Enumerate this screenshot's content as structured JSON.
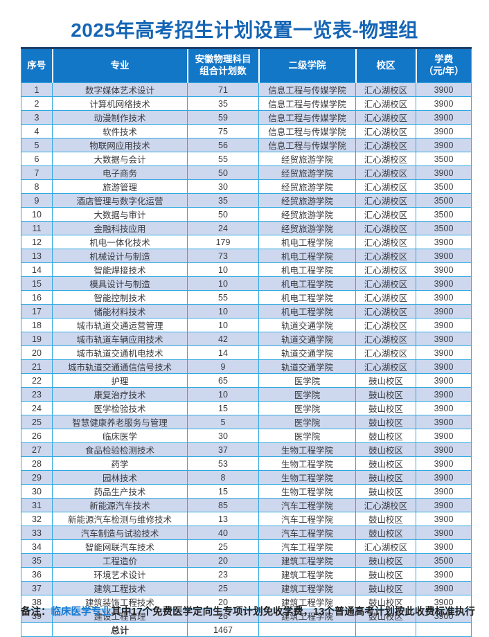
{
  "title": "2025年高考招生计划设置一览表-物理组",
  "colors": {
    "title_blue": "#1565b5",
    "header_bg": "#1377c8",
    "header_top_border": "#1b3e6a",
    "grid_border": "#2ea9e0",
    "odd_row_bg": "#cdd7ee",
    "body_text": "#3a3a3e",
    "note_highlight": "#1779d0"
  },
  "table": {
    "columns": [
      {
        "lines": [
          "序号"
        ]
      },
      {
        "lines": [
          "专业"
        ]
      },
      {
        "lines": [
          "安徽物理科目",
          "组合计划数"
        ]
      },
      {
        "lines": [
          "二级学院"
        ]
      },
      {
        "lines": [
          "校区"
        ]
      },
      {
        "lines": [
          "学费",
          "（元/年）"
        ]
      }
    ],
    "rows": [
      [
        "1",
        "数字媒体艺术设计",
        "71",
        "信息工程与传媒学院",
        "汇心湖校区",
        "3900"
      ],
      [
        "2",
        "计算机网络技术",
        "35",
        "信息工程与传媒学院",
        "汇心湖校区",
        "3900"
      ],
      [
        "3",
        "动漫制作技术",
        "59",
        "信息工程与传媒学院",
        "汇心湖校区",
        "3900"
      ],
      [
        "4",
        "软件技术",
        "75",
        "信息工程与传媒学院",
        "汇心湖校区",
        "3900"
      ],
      [
        "5",
        "物联网应用技术",
        "56",
        "信息工程与传媒学院",
        "汇心湖校区",
        "3900"
      ],
      [
        "6",
        "大数据与会计",
        "55",
        "经贸旅游学院",
        "汇心湖校区",
        "3500"
      ],
      [
        "7",
        "电子商务",
        "50",
        "经贸旅游学院",
        "汇心湖校区",
        "3900"
      ],
      [
        "8",
        "旅游管理",
        "30",
        "经贸旅游学院",
        "汇心湖校区",
        "3500"
      ],
      [
        "9",
        "酒店管理与数字化运营",
        "35",
        "经贸旅游学院",
        "汇心湖校区",
        "3500"
      ],
      [
        "10",
        "大数据与审计",
        "50",
        "经贸旅游学院",
        "汇心湖校区",
        "3500"
      ],
      [
        "11",
        "金融科技应用",
        "24",
        "经贸旅游学院",
        "汇心湖校区",
        "3500"
      ],
      [
        "12",
        "机电一体化技术",
        "179",
        "机电工程学院",
        "汇心湖校区",
        "3900"
      ],
      [
        "13",
        "机械设计与制造",
        "73",
        "机电工程学院",
        "汇心湖校区",
        "3900"
      ],
      [
        "14",
        "智能焊接技术",
        "10",
        "机电工程学院",
        "汇心湖校区",
        "3900"
      ],
      [
        "15",
        "模具设计与制造",
        "10",
        "机电工程学院",
        "汇心湖校区",
        "3900"
      ],
      [
        "16",
        "智能控制技术",
        "55",
        "机电工程学院",
        "汇心湖校区",
        "3900"
      ],
      [
        "17",
        "储能材料技术",
        "10",
        "机电工程学院",
        "汇心湖校区",
        "3900"
      ],
      [
        "18",
        "城市轨道交通运营管理",
        "10",
        "轨道交通学院",
        "汇心湖校区",
        "3900"
      ],
      [
        "19",
        "城市轨道车辆应用技术",
        "42",
        "轨道交通学院",
        "汇心湖校区",
        "3900"
      ],
      [
        "20",
        "城市轨道交通机电技术",
        "14",
        "轨道交通学院",
        "汇心湖校区",
        "3900"
      ],
      [
        "21",
        "城市轨道交通通信信号技术",
        "9",
        "轨道交通学院",
        "汇心湖校区",
        "3900"
      ],
      [
        "22",
        "护理",
        "65",
        "医学院",
        "鼓山校区",
        "3900"
      ],
      [
        "23",
        "康复治疗技术",
        "10",
        "医学院",
        "鼓山校区",
        "3900"
      ],
      [
        "24",
        "医学检验技术",
        "15",
        "医学院",
        "鼓山校区",
        "3900"
      ],
      [
        "25",
        "智慧健康养老服务与管理",
        "5",
        "医学院",
        "鼓山校区",
        "3900"
      ],
      [
        "26",
        "临床医学",
        "30",
        "医学院",
        "鼓山校区",
        "3900"
      ],
      [
        "27",
        "食品检验检测技术",
        "37",
        "生物工程学院",
        "鼓山校区",
        "3900"
      ],
      [
        "28",
        "药学",
        "53",
        "生物工程学院",
        "鼓山校区",
        "3900"
      ],
      [
        "29",
        "园林技术",
        "8",
        "生物工程学院",
        "鼓山校区",
        "3900"
      ],
      [
        "30",
        "药品生产技术",
        "15",
        "生物工程学院",
        "鼓山校区",
        "3900"
      ],
      [
        "31",
        "新能源汽车技术",
        "85",
        "汽车工程学院",
        "汇心湖校区",
        "3900"
      ],
      [
        "32",
        "新能源汽车检测与维修技术",
        "13",
        "汽车工程学院",
        "鼓山校区",
        "3900"
      ],
      [
        "33",
        "汽车制造与试验技术",
        "40",
        "汽车工程学院",
        "鼓山校区",
        "3900"
      ],
      [
        "34",
        "智能网联汽车技术",
        "25",
        "汽车工程学院",
        "汇心湖校区",
        "3900"
      ],
      [
        "35",
        "工程造价",
        "20",
        "建筑工程学院",
        "鼓山校区",
        "3500"
      ],
      [
        "36",
        "环境艺术设计",
        "23",
        "建筑工程学院",
        "鼓山校区",
        "3900"
      ],
      [
        "37",
        "建筑工程技术",
        "25",
        "建筑工程学院",
        "鼓山校区",
        "3900"
      ],
      [
        "38",
        "建筑装饰工程技术",
        "20",
        "建筑工程学院",
        "鼓山校区",
        "3900"
      ],
      [
        "39",
        "建设工程管理",
        "26",
        "建筑工程学院",
        "鼓山校区",
        "3900"
      ]
    ],
    "total_label": "总计",
    "total_value": "1467"
  },
  "note": {
    "label": "备注：",
    "highlight": "临床医学专业",
    "rest": "其中17个免费医学定向生专项计划免收学费，13个普通高考计划按此收费标准执行"
  }
}
